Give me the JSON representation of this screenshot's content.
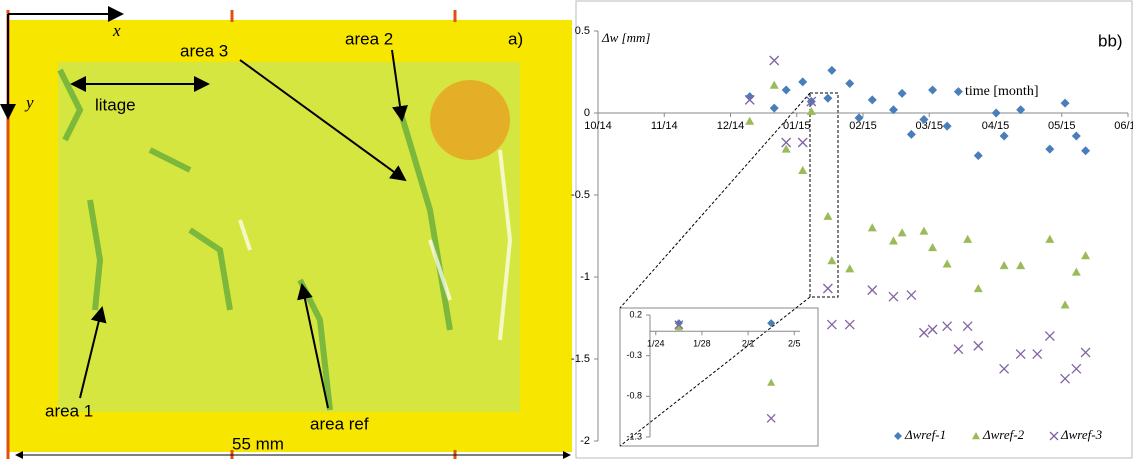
{
  "image_panel": {
    "panel_label": "a)",
    "axis_x": "x",
    "axis_y": "y",
    "labels": [
      "area 3",
      "area 2",
      "litage",
      "area 1",
      "area ref"
    ],
    "scale": "55 mm"
  },
  "chart_data": [
    {
      "type": "scatter",
      "title": "Δw [mm]",
      "panel_label": "bb)",
      "x_label": "time [month]",
      "xlim": [
        0,
        8
      ],
      "xticks": [
        {
          "value": 0,
          "label": "10/14"
        },
        {
          "value": 1,
          "label": "11/14"
        },
        {
          "value": 2,
          "label": "12/14"
        },
        {
          "value": 3,
          "label": "01/15"
        },
        {
          "value": 4,
          "label": "02/15"
        },
        {
          "value": 5,
          "label": "03/15"
        },
        {
          "value": 6,
          "label": "04/15"
        },
        {
          "value": 7,
          "label": "05/15"
        },
        {
          "value": 8,
          "label": "06/15"
        }
      ],
      "ylim": [
        -2,
        0.5
      ],
      "yticks": [
        -2,
        -1.5,
        -1,
        -0.5,
        0,
        0.5
      ],
      "series": [
        {
          "name": "Δwref-1",
          "color": "#4a7ebb",
          "marker": "diamond",
          "x": [
            2.29,
            2.66,
            2.84,
            3.09,
            3.22,
            3.47,
            3.53,
            3.8,
            3.94,
            4.14,
            4.46,
            4.59,
            4.73,
            4.92,
            5.05,
            5.27,
            5.44,
            5.74,
            6.01,
            6.13,
            6.38,
            6.82,
            7.05,
            7.22,
            7.36
          ],
          "values": [
            0.1,
            0.03,
            0.14,
            0.19,
            0.07,
            0.09,
            0.26,
            0.18,
            -0.03,
            0.08,
            0.02,
            0.12,
            -0.13,
            -0.04,
            0.14,
            -0.08,
            0.13,
            -0.26,
            0,
            -0.14,
            0.02,
            -0.22,
            0.06,
            -0.14,
            -0.23
          ]
        },
        {
          "name": "Δwref-2",
          "color": "#9bbb59",
          "marker": "triangle",
          "x": [
            2.29,
            2.66,
            2.84,
            3.09,
            3.22,
            3.47,
            3.53,
            3.8,
            4.14,
            4.46,
            4.59,
            4.92,
            5.05,
            5.27,
            5.58,
            5.74,
            6.13,
            6.38,
            6.82,
            7.05,
            7.22,
            7.36
          ],
          "values": [
            -0.05,
            0.17,
            -0.22,
            -0.35,
            0.01,
            -0.63,
            -0.9,
            -0.95,
            -0.7,
            -0.78,
            -0.73,
            -0.72,
            -0.82,
            -0.92,
            -0.77,
            -1.07,
            -0.93,
            -0.93,
            -0.77,
            -1.17,
            -0.97,
            -0.87
          ]
        },
        {
          "name": "Δwref-3",
          "color": "#8064a2",
          "marker": "cross",
          "x": [
            2.29,
            2.66,
            2.84,
            3.09,
            3.22,
            3.47,
            3.53,
            3.8,
            4.14,
            4.46,
            4.73,
            4.92,
            5.05,
            5.27,
            5.44,
            5.58,
            5.74,
            6.13,
            6.38,
            6.63,
            6.82,
            7.05,
            7.22,
            7.36
          ],
          "values": [
            0.08,
            0.32,
            -0.18,
            -0.18,
            0.07,
            -1.07,
            -1.29,
            -1.29,
            -1.08,
            -1.12,
            -1.11,
            -1.34,
            -1.32,
            -1.3,
            -1.44,
            -1.3,
            -1.42,
            -1.56,
            -1.47,
            -1.47,
            -1.36,
            -1.62,
            -1.56,
            -1.46
          ]
        }
      ]
    },
    {
      "type": "scatter",
      "xlim": [
        23.5,
        36.5
      ],
      "xticks": [
        {
          "value": 24,
          "label": "1/24"
        },
        {
          "value": 28,
          "label": "1/28"
        },
        {
          "value": 32,
          "label": "2/1"
        },
        {
          "value": 36,
          "label": "2/5"
        }
      ],
      "ylim": [
        -1.3,
        0.2
      ],
      "yticks": [
        0.2,
        -0.3,
        -0.8,
        -1.3
      ],
      "series": [
        {
          "color": "#4a7ebb",
          "marker": "diamond",
          "x": [
            26,
            34
          ],
          "values": [
            0.1,
            0.1
          ]
        },
        {
          "color": "#9bbb59",
          "marker": "triangle",
          "x": [
            26,
            34
          ],
          "values": [
            0.05,
            -0.63
          ]
        },
        {
          "color": "#8064a2",
          "marker": "cross",
          "x": [
            26,
            34
          ],
          "values": [
            0.08,
            -1.07
          ]
        }
      ]
    }
  ]
}
